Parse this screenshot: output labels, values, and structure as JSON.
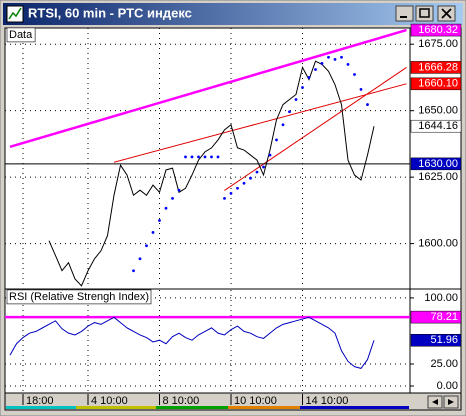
{
  "window": {
    "title": "RTSI, 60 min - РТС индекс"
  },
  "chart_data": [
    {
      "type": "line",
      "panel_label": "Data",
      "ylim": [
        1583.3,
        1681.1
      ],
      "yticks": [
        {
          "value": 1600,
          "label": "1600.00"
        },
        {
          "value": 1625,
          "label": "1625.00"
        },
        {
          "value": 1650,
          "label": "1650.00"
        },
        {
          "value": 1675,
          "label": "1675.00"
        }
      ],
      "grid": true,
      "series": [
        {
          "color": "#000000",
          "style": "line",
          "values": [
            null,
            null,
            null,
            null,
            null,
            null,
            1601.1,
            1595.5,
            1589.8,
            1592.8,
            1586.7,
            1584.1,
            1589.8,
            1594.3,
            1597.3,
            1603.0,
            1618.2,
            1629.5,
            1625.8,
            1618.2,
            1620.1,
            1618.2,
            1622.0,
            1619.3,
            1627.7,
            1628.4,
            1619.3,
            1620.8,
            1625.8,
            1631.4,
            1634.5,
            1636.0,
            1639.0,
            1642.8,
            1644.7,
            1636.0,
            1635.2,
            1633.3,
            1631.4,
            1625.8,
            1635.2,
            1646.6,
            1652.3,
            1654.2,
            1656.1,
            1666.3,
            1661.7,
            1668.6,
            1667.4,
            1664.8,
            1659.8,
            1652.3,
            1631.4,
            1625.8,
            1623.9,
            1633.3,
            1644.16
          ]
        },
        {
          "color": "#0000ff",
          "style": "dots",
          "values": [
            null,
            null,
            null,
            null,
            null,
            null,
            null,
            null,
            null,
            null,
            null,
            null,
            null,
            null,
            null,
            null,
            null,
            null,
            null,
            1589.8,
            1594.3,
            1599.2,
            1604.2,
            1608.7,
            1613.3,
            1617.0,
            1620.1,
            1632.6,
            1632.6,
            1632.6,
            1632.6,
            1632.6,
            1632.6,
            1617.0,
            1618.9,
            1620.8,
            1622.7,
            1624.6,
            1626.9,
            1628.8,
            1633.3,
            1639.0,
            1644.7,
            1649.6,
            1654.2,
            1658.7,
            1662.5,
            1665.5,
            1667.8,
            1670.1,
            1669.3,
            1670.1,
            1667.4,
            1663.6,
            1658.0,
            1652.3,
            null
          ]
        }
      ],
      "trendlines": [
        {
          "color": "#ff00ff",
          "width": 2.5,
          "x": [
            0,
            61
          ],
          "values": [
            1636.4,
            1680.32
          ]
        },
        {
          "color": "#e00000",
          "width": 1,
          "x": [
            16,
            61
          ],
          "values": [
            1630.6,
            1660.1
          ]
        },
        {
          "color": "#e00000",
          "width": 1,
          "x": [
            33,
            61
          ],
          "values": [
            1620.0,
            1666.28
          ]
        }
      ],
      "markers": [
        {
          "value": 1680.32,
          "color": "#ff00ff"
        },
        {
          "value": 1666.28,
          "color": "#ff0000"
        },
        {
          "value": 1660.1,
          "label": "1660.10",
          "color": "#ff0000"
        },
        {
          "value": 1644.16,
          "color": "#ffffff"
        },
        {
          "value": 1630,
          "label": "1630.00",
          "color": "#0000c0",
          "line_color": "#000000"
        }
      ]
    },
    {
      "type": "line",
      "panel_label": "RSI (Relative Strengh Index)",
      "categories": [
        null,
        null,
        "18:00",
        null,
        null,
        null,
        null,
        null,
        null,
        null,
        null,
        null,
        "4 10:00",
        null,
        null,
        null,
        null,
        null,
        null,
        null,
        null,
        null,
        null,
        "8 10:00",
        null,
        null,
        null,
        null,
        null,
        null,
        null,
        null,
        null,
        null,
        "10 10:00",
        null,
        null,
        null,
        null,
        null,
        null,
        null,
        null,
        null,
        null,
        "14 10:00",
        null,
        null,
        null,
        null,
        null,
        null,
        null,
        null,
        null,
        null,
        null
      ],
      "ylim": [
        -6.8,
        109
      ],
      "yticks": [
        {
          "value": 0,
          "label": "0.00"
        },
        {
          "value": 25,
          "label": "25.00"
        },
        {
          "value": 100,
          "label": "100.00"
        }
      ],
      "grid": true,
      "series": [
        {
          "color": "#0000c0",
          "style": "line",
          "values": [
            35,
            48,
            55,
            60,
            62,
            66,
            70,
            74,
            65,
            60,
            58,
            62,
            68,
            72,
            70,
            74,
            78,
            72,
            66,
            62,
            58,
            55,
            50,
            52,
            48,
            56,
            60,
            55,
            52,
            58,
            62,
            66,
            60,
            58,
            64,
            68,
            62,
            60,
            56,
            54,
            60,
            66,
            70,
            72,
            74,
            76,
            78,
            74,
            70,
            66,
            60,
            40,
            28,
            22,
            20,
            30,
            51.96
          ]
        }
      ],
      "trendlines": [],
      "markers": [
        {
          "value": 78.21,
          "color": "#ff00ff",
          "line_color": "#ff00ff"
        },
        {
          "value": 51.96,
          "color": "#0000c0"
        }
      ]
    }
  ]
}
